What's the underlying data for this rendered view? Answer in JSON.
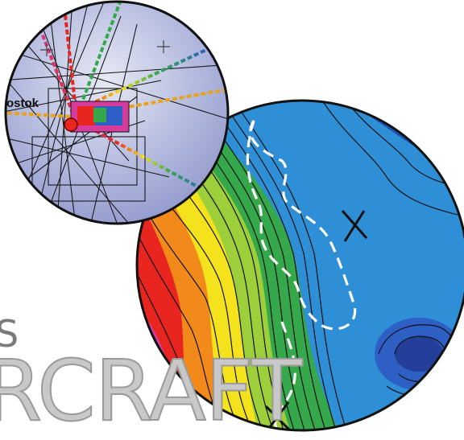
{
  "map_inset": {
    "place_label": "ostok"
  },
  "heading": {
    "suffix_letter": "S",
    "word": "RCRAFT"
  },
  "colors": {
    "red": "#e8261f",
    "orange": "#f28a1b",
    "yellow": "#f4e21c",
    "green": "#34a84a",
    "cyan": "#1ab0d8",
    "blue": "#2e5fc4",
    "magenta": "#d63c9b",
    "radar_blue": "#9aa3cf",
    "dashed_outline": "#ffffff"
  }
}
